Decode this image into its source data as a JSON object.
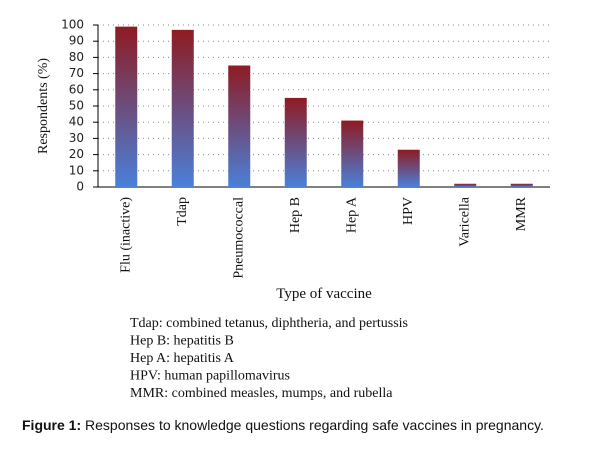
{
  "chart_data": {
    "type": "bar",
    "categories": [
      "Flu (inactive)",
      "Tdap",
      "Pneumococcal",
      "Hep B",
      "Hep A",
      "HPV",
      "Varicella",
      "MMR"
    ],
    "values": [
      99,
      97,
      75,
      55,
      41,
      23,
      2,
      2
    ],
    "gradient": [
      "#8e1b22",
      "#4a80d9"
    ],
    "ylim": [
      0,
      100
    ],
    "yticks": [
      0,
      10,
      20,
      30,
      40,
      50,
      60,
      70,
      80,
      90,
      100
    ],
    "grid": true,
    "y_label": "Respondents (%)",
    "x_label": "Type of vaccine",
    "notes": [
      "Tdap: combined tetanus, diphtheria, and pertussis",
      "Hep B: hepatitis B",
      "Hep A: hepatitis A",
      "HPV: human papillomavirus",
      "MMR: combined measles, mumps, and rubella"
    ]
  },
  "caption": {
    "label": "Figure 1:",
    "text": "Responses to knowledge questions regarding safe vaccines in pregnancy."
  }
}
